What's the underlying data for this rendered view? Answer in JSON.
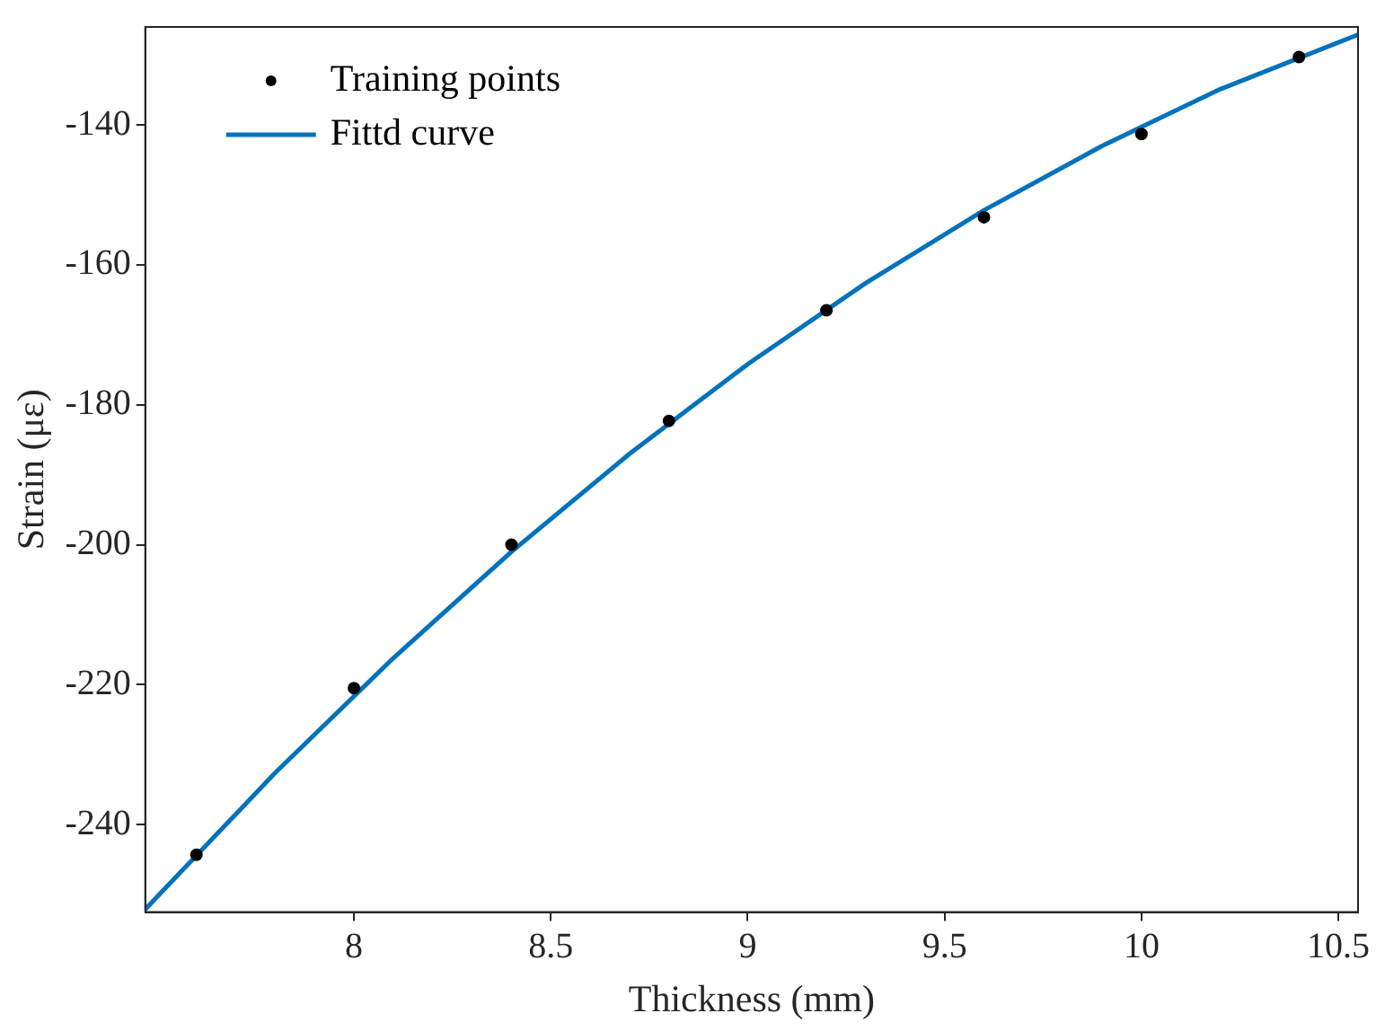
{
  "chart_data": {
    "type": "scatter",
    "xlabel": "Thickness (mm)",
    "ylabel": "Strain (με)",
    "xlim": [
      7.47,
      10.55
    ],
    "xticks": [
      8,
      8.5,
      9,
      9.5,
      10,
      10.5
    ],
    "ylim": [
      -252.5,
      -126
    ],
    "yticks": [
      -240,
      -220,
      -200,
      -180,
      -160,
      -140
    ],
    "grid": false,
    "legend": "top left",
    "series": [
      {
        "name": "Training points",
        "type": "scatter",
        "color": "#000000",
        "marker": "circle",
        "x": [
          7.6,
          8.0,
          8.4,
          8.8,
          9.2,
          9.6,
          10.0,
          10.4
        ],
        "values": [
          -244.3,
          -220.5,
          -200,
          -182.3,
          -166.5,
          -153.2,
          -141.3,
          -130.3
        ]
      },
      {
        "name": "Fittd curve",
        "type": "line",
        "color": "#0072bd",
        "marker": "none",
        "line_style": "solid",
        "x": [
          7.47,
          7.8,
          8.1,
          8.4,
          8.7,
          9.0,
          9.3,
          9.6,
          9.9,
          10.2,
          10.55
        ],
        "values": [
          -252.1,
          -232.6,
          -216.2,
          -201.0,
          -187.0,
          -174.2,
          -162.6,
          -152.2,
          -143.0,
          -134.9,
          -127.1
        ]
      }
    ]
  }
}
